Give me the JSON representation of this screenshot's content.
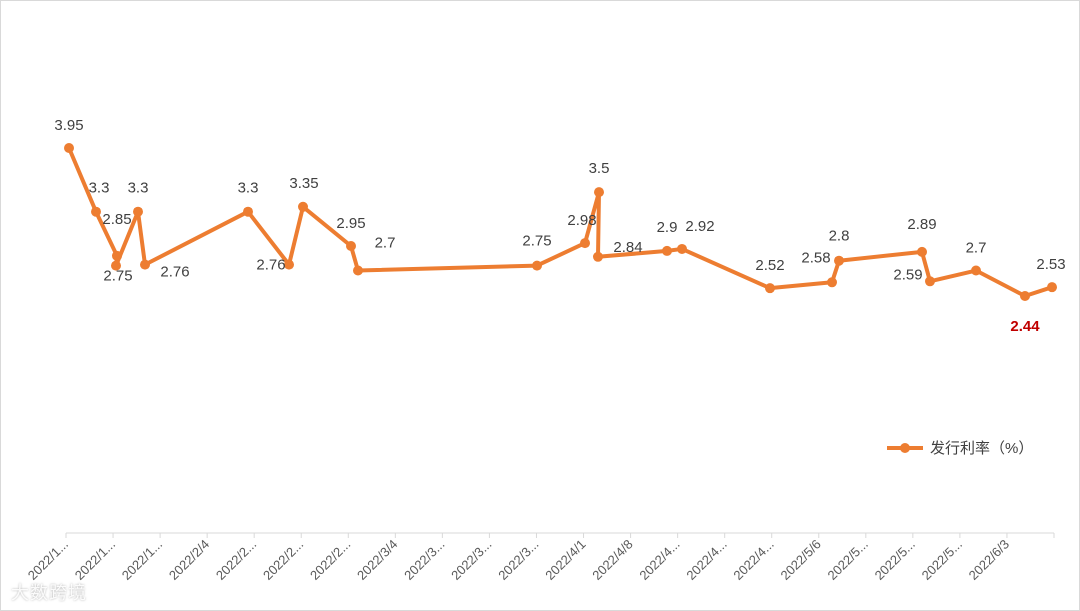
{
  "chart_data": {
    "type": "line",
    "title": "",
    "xlabel": "",
    "ylabel": "",
    "ylim": [
      0,
      4.5
    ],
    "grid": false,
    "legend_position": "bottom-right",
    "x_tick_labels": [
      "2022/1...",
      "2022/1...",
      "2022/1...",
      "2022/2/4",
      "2022/2...",
      "2022/2...",
      "2022/2...",
      "2022/3/4",
      "2022/3...",
      "2022/3...",
      "2022/3...",
      "2022/4/1",
      "2022/4/8",
      "2022/4...",
      "2022/4...",
      "2022/4...",
      "2022/5/6",
      "2022/5...",
      "2022/5...",
      "2022/5...",
      "2022/6/3"
    ],
    "series": [
      {
        "name": "发行利率（%）",
        "color": "#ed7d31",
        "values": [
          3.95,
          3.3,
          2.85,
          2.75,
          3.3,
          2.76,
          3.3,
          2.76,
          3.35,
          2.95,
          2.7,
          2.75,
          2.98,
          3.5,
          2.84,
          2.9,
          2.92,
          2.52,
          2.58,
          2.8,
          2.89,
          2.59,
          2.7,
          2.44,
          2.53
        ],
        "labels": [
          "3.95",
          "3.3",
          "2.85",
          "2.75",
          "3.3",
          "2.76",
          "3.3",
          "2.76",
          "3.35",
          "2.95",
          "2.7",
          "2.75",
          "2.98",
          "3.5",
          "2.84",
          "2.9",
          "2.92",
          "2.52",
          "2.58",
          "2.8",
          "2.89",
          "2.59",
          "2.7",
          "2.44",
          "2.53"
        ]
      }
    ]
  },
  "watermark": "大数跨境"
}
